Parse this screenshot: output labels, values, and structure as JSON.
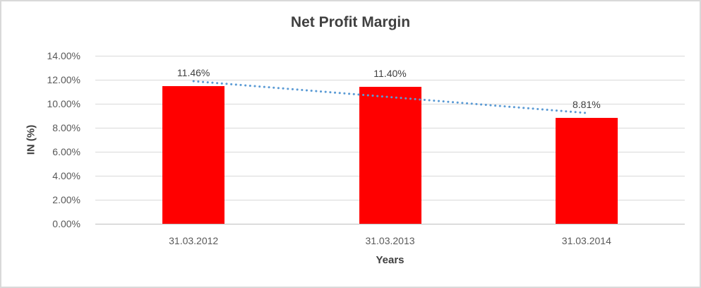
{
  "chart_data": {
    "type": "bar",
    "title": "Net Profit Margin",
    "xlabel": "Years",
    "ylabel": "IN (%)",
    "categories": [
      "31.03.2012",
      "31.03.2013",
      "31.03.2014"
    ],
    "values": [
      11.46,
      11.4,
      8.81
    ],
    "value_labels": [
      "11.46%",
      "11.40%",
      "8.81%"
    ],
    "ylim": [
      0,
      14
    ],
    "ytick_step": 2,
    "ytick_labels": [
      "0.00%",
      "2.00%",
      "4.00%",
      "6.00%",
      "8.00%",
      "10.00%",
      "12.00%",
      "14.00%"
    ],
    "grid": true,
    "legend": "none",
    "bar_color": "#ff0000",
    "trendline": {
      "type": "linear",
      "style": "dotted",
      "color": "#5b9bd5"
    }
  },
  "colors": {
    "background": "#ffffff",
    "border": "#d9d9d9",
    "title_text": "#404040",
    "axis_text": "#595959",
    "data_label_text": "#404040",
    "gridline": "#d9d9d9",
    "axis_line": "#bfbfbf"
  }
}
